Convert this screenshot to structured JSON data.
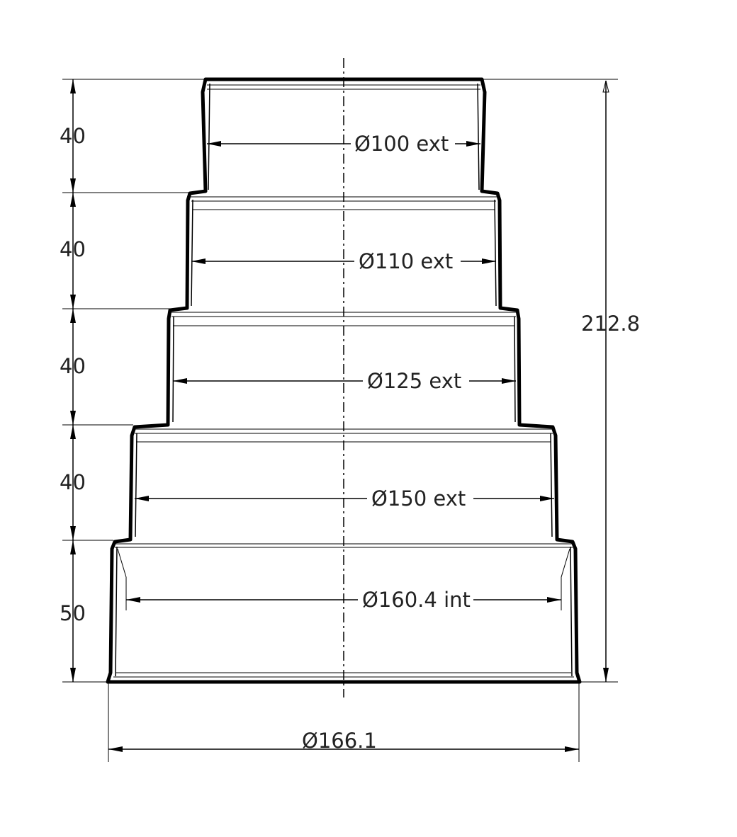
{
  "diameter_labels": [
    "Ø100 ext",
    "Ø110 ext",
    "Ø125 ext",
    "Ø150 ext",
    "Ø160.4 int"
  ],
  "height_labels": [
    "40",
    "40",
    "40",
    "40",
    "50"
  ],
  "total_height": "212.8",
  "base_diameter": "Ø166.1"
}
